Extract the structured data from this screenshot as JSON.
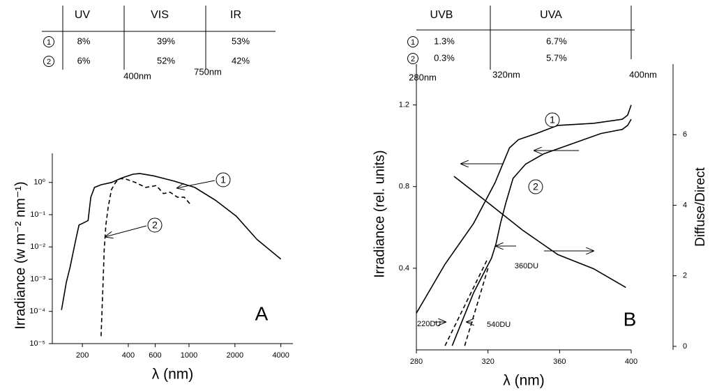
{
  "chart_data": [
    {
      "type": "line",
      "xlabel": "λ (nm)",
      "ylabel": "Irradiance (w m⁻² nm⁻¹)",
      "panel_label": "A",
      "xlog": true,
      "ylog": true,
      "xlim": [
        127,
        4800
      ],
      "ylim": [
        1e-05,
        8
      ],
      "xticks": [
        200,
        400,
        600,
        1000,
        2000,
        4000
      ],
      "yticks": [
        {
          "value": 1e-05,
          "label": "10⁻⁵"
        },
        {
          "value": 0.0001,
          "label": "10⁻⁴"
        },
        {
          "value": 0.001,
          "label": "10⁻³"
        },
        {
          "value": 0.01,
          "label": "10⁻²"
        },
        {
          "value": 0.1,
          "label": "10⁻¹"
        },
        {
          "value": 1,
          "label": "10⁰"
        }
      ],
      "table": {
        "columns": [
          "UV",
          "VIS",
          "IR"
        ],
        "rows": [
          {
            "marker": "1",
            "cells": [
              "8%",
              "39%",
              "53%"
            ]
          },
          {
            "marker": "2",
            "cells": [
              "6%",
              "52%",
              "42%"
            ]
          }
        ],
        "boundaries": [
          "400nm",
          "750nm"
        ]
      },
      "series": [
        {
          "label": "1",
          "color": "#000000",
          "dash": false,
          "x": [
            146,
            157,
            166,
            181,
            190,
            204,
            218,
            227,
            240,
            266,
            310,
            366,
            429,
            475,
            586,
            800,
            1090,
            1490,
            2040,
            2790,
            4000
          ],
          "values": [
            0.00011,
            0.0008,
            0.0023,
            0.017,
            0.048,
            0.056,
            0.066,
            0.35,
            0.7,
            0.85,
            1.0,
            1.4,
            1.8,
            1.9,
            1.6,
            1.1,
            0.7,
            0.28,
            0.09,
            0.017,
            0.0042
          ]
        },
        {
          "label": "2",
          "color": "#000000",
          "dash": true,
          "x": [
            265,
            272,
            278,
            285,
            295,
            310,
            330,
            350,
            380,
            445,
            520,
            610,
            680,
            750,
            840,
            930,
            1030
          ],
          "values": [
            1.7e-05,
            0.0004,
            0.008,
            0.048,
            0.17,
            0.6,
            1.0,
            1.3,
            1.3,
            1.0,
            0.7,
            0.8,
            0.45,
            0.5,
            0.35,
            0.35,
            0.2
          ]
        }
      ]
    },
    {
      "type": "line",
      "xlabel": "λ (nm)",
      "ylabel": "Irradiance (rel. units)",
      "y2label": "Diffuse/Direct",
      "panel_label": "B",
      "xlog": false,
      "ylog": false,
      "xlim": [
        280,
        400
      ],
      "ylim": [
        0,
        1.4
      ],
      "y2lim": [
        -0.1,
        8
      ],
      "xticks": [
        280,
        320,
        360,
        400
      ],
      "yticks": [
        0.4,
        0.8,
        1.2
      ],
      "y2ticks": [
        0,
        2,
        4,
        6
      ],
      "table": {
        "columns": [
          "UVB",
          "UVA"
        ],
        "rows": [
          {
            "marker": "1",
            "cells": [
              "1.3%",
              "6.7%"
            ]
          },
          {
            "marker": "2",
            "cells": [
              "0.3%",
              "5.7%"
            ]
          }
        ],
        "boundaries": [
          "280nm",
          "320nm",
          "400nm"
        ]
      },
      "series": [
        {
          "label": "1",
          "color": "#000000",
          "dash": false,
          "x": [
            280,
            296,
            312,
            324,
            332,
            337,
            347,
            359,
            379,
            395,
            398,
            400
          ],
          "values": [
            0.18,
            0.42,
            0.62,
            0.82,
            0.99,
            1.03,
            1.06,
            1.1,
            1.11,
            1.13,
            1.15,
            1.2
          ]
        },
        {
          "label": "2",
          "annotation": "360DU",
          "color": "#000000",
          "dash": false,
          "x": [
            300,
            312,
            322,
            324.5,
            327,
            330,
            334,
            341,
            351,
            367,
            383,
            395,
            398,
            400
          ],
          "values": [
            0.02,
            0.28,
            0.45,
            0.52,
            0.62,
            0.72,
            0.84,
            0.91,
            0.96,
            1.01,
            1.06,
            1.08,
            1.1,
            1.13
          ]
        },
        {
          "label": "220DU",
          "color": "#000000",
          "dash": true,
          "x": [
            296,
            320
          ],
          "values": [
            0.02,
            0.45
          ]
        },
        {
          "label": "540DU",
          "color": "#000000",
          "dash": true,
          "x": [
            307,
            320
          ],
          "values": [
            0.02,
            0.4
          ]
        },
        {
          "axis": "y2",
          "color": "#000000",
          "dash": false,
          "x": [
            301,
            320,
            339.4,
            359,
            379,
            397
          ],
          "values": [
            4.82,
            4.07,
            3.29,
            2.6,
            2.2,
            1.67
          ]
        }
      ]
    }
  ]
}
